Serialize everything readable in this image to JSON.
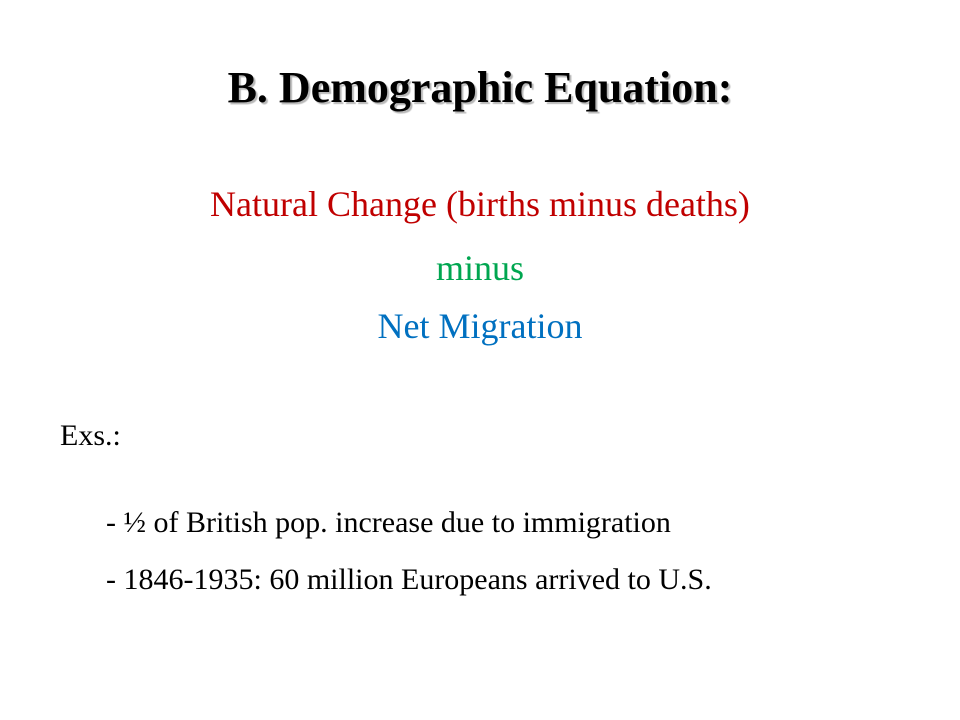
{
  "slide": {
    "title": "B.  Demographic Equation:",
    "equation": {
      "line1": "Natural Change (births minus deaths)",
      "line2": "minus",
      "line3": "Net Migration"
    },
    "examples_label": "Exs.:",
    "examples": [
      "- ½ of British pop. increase due to immigration",
      "- 1846-1935: 60 million Europeans arrived to U.S."
    ]
  },
  "colors": {
    "title": "#000000",
    "line1": "#c00000",
    "line2": "#00a650",
    "line3": "#0070c0",
    "body": "#000000"
  }
}
